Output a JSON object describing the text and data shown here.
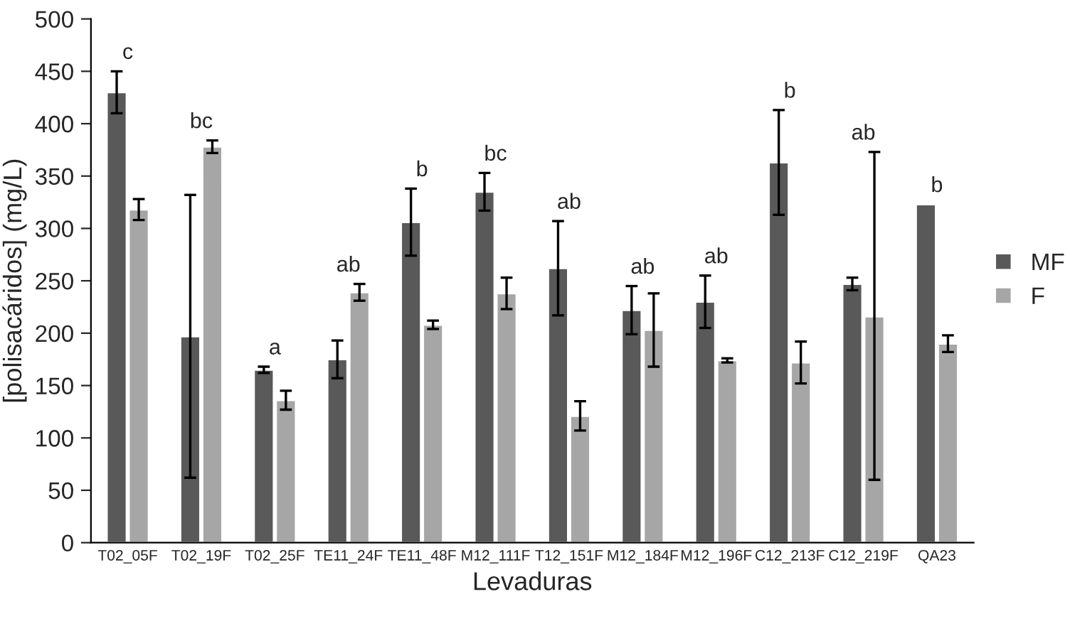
{
  "chart_data": {
    "type": "bar",
    "xlabel": "Levaduras",
    "ylabel": "[polisacáridos] (mg/L)",
    "categories": [
      "T02_05F",
      "T02_19F",
      "T02_25F",
      "TE11_24F",
      "TE11_48F",
      "M12_111F",
      "T12_151F",
      "M12_184F",
      "M12_196F",
      "C12_213F",
      "C12_219F",
      "QA23"
    ],
    "series": [
      {
        "name": "MF",
        "color": "#595959",
        "values": [
          430,
          197,
          165,
          175,
          306,
          335,
          262,
          222,
          230,
          363,
          247,
          323
        ],
        "errors": [
          20,
          [
            135,
            135
          ],
          3,
          18,
          32,
          18,
          45,
          23,
          25,
          50,
          6,
          null
        ]
      },
      {
        "name": "F",
        "color": "#a6a6a6",
        "values": [
          318,
          378,
          136,
          239,
          208,
          238,
          121,
          203,
          174,
          172,
          216,
          190
        ],
        "errors": [
          10,
          6,
          9,
          8,
          4,
          15,
          14,
          35,
          2,
          20,
          [
            156,
            157
          ],
          8
        ]
      }
    ],
    "ylim": [
      0,
      500
    ],
    "yticks": [
      0,
      50,
      100,
      150,
      200,
      250,
      300,
      350,
      400,
      450,
      500
    ],
    "grid": false,
    "legend": "right",
    "annotations": [
      "c",
      "bc",
      "a",
      "ab",
      "b",
      "bc",
      "ab",
      "ab",
      "ab",
      "b",
      "ab",
      "b"
    ]
  }
}
